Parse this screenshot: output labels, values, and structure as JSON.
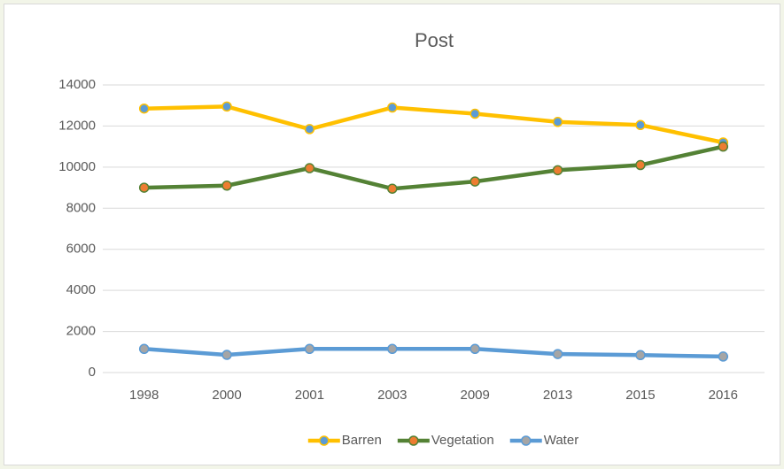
{
  "chart_data": {
    "type": "line",
    "title": "Post",
    "categories": [
      "1998",
      "2000",
      "2001",
      "2003",
      "2009",
      "2013",
      "2015",
      "2016"
    ],
    "series": [
      {
        "name": "Barren",
        "color": "#ffc000",
        "marker_color": "#5b9bd5",
        "values": [
          12850,
          12950,
          11850,
          12900,
          12600,
          12200,
          12050,
          11200
        ]
      },
      {
        "name": "Vegetation",
        "color": "#548235",
        "marker_color": "#ed7d31",
        "values": [
          9000,
          9100,
          9950,
          8950,
          9300,
          9850,
          10100,
          11000
        ]
      },
      {
        "name": "Water",
        "color": "#5b9bd5",
        "marker_color": "#a5a5a5",
        "values": [
          1150,
          860,
          1150,
          1150,
          1150,
          900,
          850,
          780
        ]
      }
    ],
    "ylim": [
      0,
      14000
    ],
    "yticks": [
      0,
      2000,
      4000,
      6000,
      8000,
      10000,
      12000,
      14000
    ],
    "grid": true,
    "legend": "bottom"
  }
}
